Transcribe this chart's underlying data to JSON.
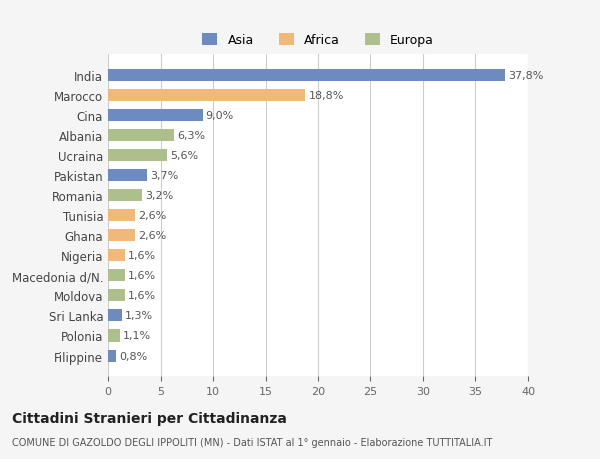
{
  "countries": [
    "India",
    "Marocco",
    "Cina",
    "Albania",
    "Ucraina",
    "Pakistan",
    "Romania",
    "Tunisia",
    "Ghana",
    "Nigeria",
    "Macedonia d/N.",
    "Moldova",
    "Sri Lanka",
    "Polonia",
    "Filippine"
  ],
  "values": [
    37.8,
    18.8,
    9.0,
    6.3,
    5.6,
    3.7,
    3.2,
    2.6,
    2.6,
    1.6,
    1.6,
    1.6,
    1.3,
    1.1,
    0.8
  ],
  "labels": [
    "37,8%",
    "18,8%",
    "9,0%",
    "6,3%",
    "5,6%",
    "3,7%",
    "3,2%",
    "2,6%",
    "2,6%",
    "1,6%",
    "1,6%",
    "1,6%",
    "1,3%",
    "1,1%",
    "0,8%"
  ],
  "colors": [
    "#6d8bbf",
    "#f0b97a",
    "#6d8bbf",
    "#adbf8a",
    "#adbf8a",
    "#6d8bbf",
    "#adbf8a",
    "#f0b97a",
    "#f0b97a",
    "#f0b97a",
    "#adbf8a",
    "#adbf8a",
    "#6d8bbf",
    "#adbf8a",
    "#6d8bbf"
  ],
  "legend_labels": [
    "Asia",
    "Africa",
    "Europa"
  ],
  "legend_colors": [
    "#6d8bbf",
    "#f0b97a",
    "#adbf8a"
  ],
  "xlim": [
    0,
    40
  ],
  "xticks": [
    0,
    5,
    10,
    15,
    20,
    25,
    30,
    35,
    40
  ],
  "title": "Cittadini Stranieri per Cittadinanza",
  "subtitle": "COMUNE DI GAZOLDO DEGLI IPPOLITI (MN) - Dati ISTAT al 1° gennaio - Elaborazione TUTTITALIA.IT",
  "background_color": "#f5f5f5",
  "bar_background": "#ffffff",
  "grid_color": "#cccccc"
}
